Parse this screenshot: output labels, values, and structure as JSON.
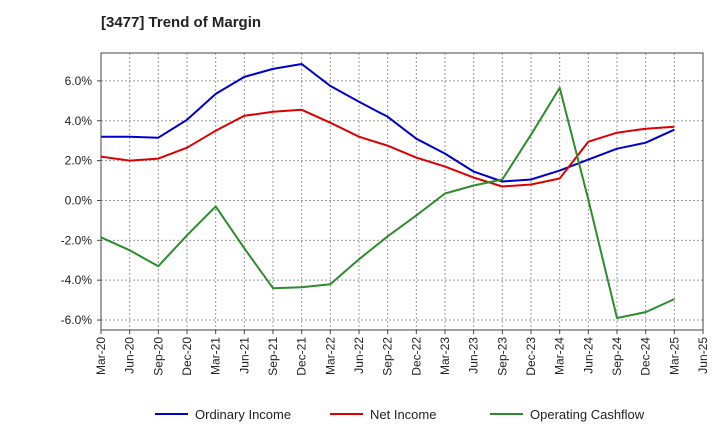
{
  "chart_data": {
    "type": "line",
    "title": "[3477]  Trend of Margin",
    "xlabel": "",
    "ylabel": "",
    "x": [
      "Mar-20",
      "Jun-20",
      "Sep-20",
      "Dec-20",
      "Mar-21",
      "Jun-21",
      "Sep-21",
      "Dec-21",
      "Mar-22",
      "Jun-22",
      "Sep-22",
      "Dec-22",
      "Mar-23",
      "Jun-23",
      "Sep-23",
      "Dec-23",
      "Mar-24",
      "Jun-24",
      "Sep-24",
      "Dec-24",
      "Mar-25",
      "Jun-25"
    ],
    "ylim": [
      -6.5,
      7.4
    ],
    "yticks": [
      6.0,
      4.0,
      2.0,
      0.0,
      -2.0,
      -4.0,
      -6.0
    ],
    "ytick_labels": [
      "6.0%",
      "4.0%",
      "2.0%",
      "0.0%",
      "-2.0%",
      "-4.0%",
      "-6.0%"
    ],
    "grid": true,
    "legend_position": "bottom",
    "series": [
      {
        "name": "Ordinary Income",
        "color": "#0000cc",
        "values": [
          3.2,
          3.2,
          3.15,
          4.05,
          5.35,
          6.2,
          6.6,
          6.85,
          5.75,
          4.95,
          4.2,
          3.1,
          2.35,
          1.45,
          0.95,
          1.05,
          1.5,
          2.05,
          2.6,
          2.9,
          3.55,
          null
        ]
      },
      {
        "name": "Net Income",
        "color": "#dd0000",
        "values": [
          2.2,
          2.0,
          2.1,
          2.65,
          3.5,
          4.25,
          4.45,
          4.55,
          3.9,
          3.2,
          2.75,
          2.15,
          1.7,
          1.15,
          0.7,
          0.8,
          1.1,
          2.95,
          3.4,
          3.6,
          3.7,
          null
        ]
      },
      {
        "name": "Operating Cashflow",
        "color": "#2e8b2e",
        "values": [
          -1.85,
          -2.5,
          -3.3,
          -1.75,
          -0.3,
          -2.4,
          -4.4,
          -4.35,
          -4.2,
          -2.95,
          -1.8,
          -0.75,
          0.35,
          0.75,
          1.05,
          3.3,
          5.65,
          0.05,
          -5.9,
          -5.6,
          -4.95,
          null
        ]
      }
    ]
  }
}
